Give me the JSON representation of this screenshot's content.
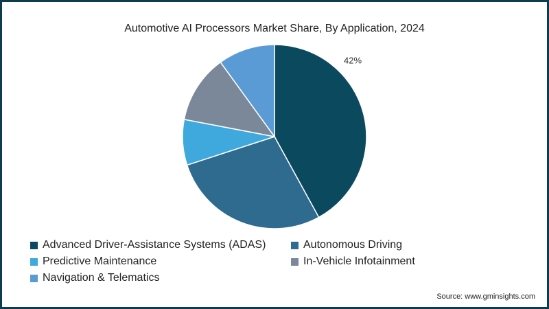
{
  "chart_data": {
    "type": "pie",
    "title": "Automotive AI Processors Market Share, By Application, 2024",
    "categories": [
      "Advanced Driver-Assistance Systems (ADAS)",
      "Autonomous Driving",
      "Predictive Maintenance",
      "In-Vehicle Infotainment",
      "Navigation & Telematics"
    ],
    "values": [
      42,
      28,
      8,
      12,
      10
    ],
    "colors": [
      "#0b4a5e",
      "#2e6b8f",
      "#3fa9de",
      "#7a889a",
      "#5a9bd6"
    ],
    "data_labels": [
      "42%",
      "",
      "",
      "",
      ""
    ],
    "legend_position": "bottom-left"
  },
  "source": "Source: www.gminsights.com"
}
